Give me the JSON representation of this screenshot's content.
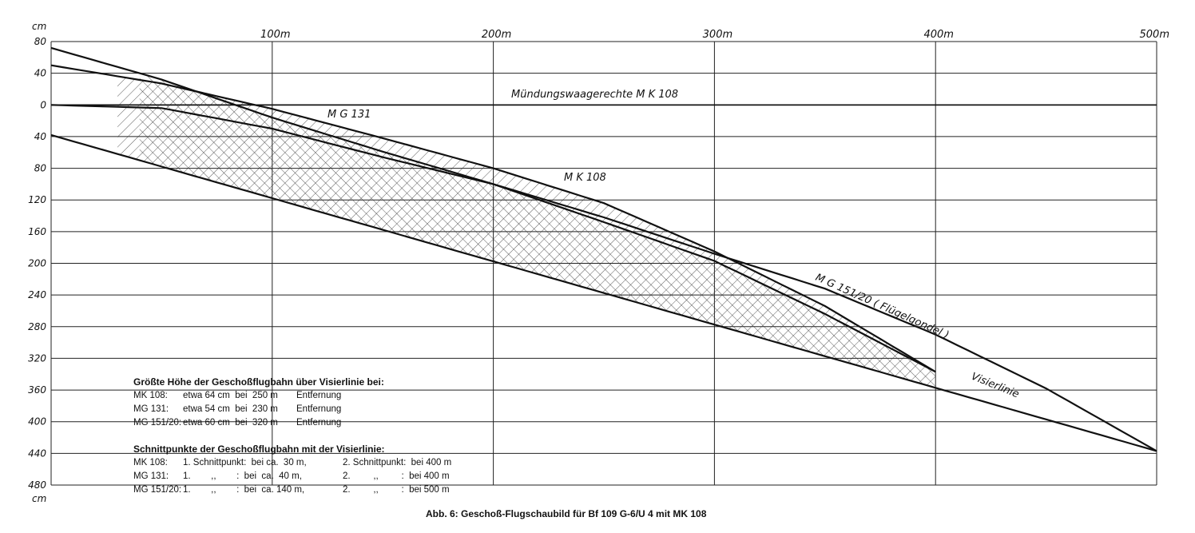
{
  "chart_data": {
    "type": "line",
    "caption": "Abb. 6: Geschoß-Flugschaubild für Bf 109 G-6/U 4 mit MK 108",
    "x_unit_labels": [
      "100m",
      "200m",
      "300m",
      "400m",
      "500m"
    ],
    "x_ticks": [
      100,
      200,
      300,
      400,
      500
    ],
    "xlim": [
      0,
      500
    ],
    "y_unit_top": "cm",
    "y_unit_bottom": "cm",
    "y_tick_labels": [
      "80",
      "40",
      "0",
      "40",
      "80",
      "120",
      "160",
      "200",
      "240",
      "280",
      "320",
      "360",
      "400",
      "440",
      "480"
    ],
    "y_ticks": [
      80,
      40,
      0,
      -40,
      -80,
      -120,
      -160,
      -200,
      -240,
      -280,
      -320,
      -360,
      -400,
      -440,
      -480
    ],
    "ylim": [
      -480,
      80
    ],
    "grid": true,
    "series": [
      {
        "name": "Visierlinie",
        "x": [
          0,
          500
        ],
        "y": [
          -38,
          -437
        ]
      },
      {
        "name": "MK 108",
        "x": [
          0,
          50,
          100,
          150,
          200,
          250,
          300,
          350,
          400
        ],
        "y": [
          50,
          27,
          -5,
          -42,
          -80,
          -124,
          -185,
          -254,
          -337
        ]
      },
      {
        "name": "MG 131",
        "x": [
          0,
          50,
          100,
          150,
          200,
          250,
          300,
          350,
          400
        ],
        "y": [
          72,
          32,
          -16,
          -59,
          -100,
          -148,
          -197,
          -264,
          -337
        ]
      },
      {
        "name": "MG 151/20",
        "x": [
          0,
          50,
          100,
          150,
          200,
          250,
          300,
          350,
          400,
          450,
          500
        ],
        "y": [
          0,
          -4,
          -30,
          -66,
          -100,
          -142,
          -188,
          -232,
          -290,
          -358,
          -437
        ]
      },
      {
        "name": "Mündungswaagerechte MK 108",
        "x": [
          0,
          500
        ],
        "y": [
          0,
          0
        ]
      }
    ],
    "annotations": [
      "Mündungswaagerechte M K 108",
      "M G 131",
      "M K 108",
      "M G 151/20 ( Flügelgondel )",
      "Visierlinie"
    ]
  },
  "info": {
    "heading1": "Größte Höhe der Geschoßflugbahn über Visierlinie bei:",
    "rows1": [
      [
        "MK 108:",
        "etwa 64 cm  bei  250 m",
        "Entfernung"
      ],
      [
        "MG 131:",
        "etwa 54 cm  bei  230 m",
        "Entfernung"
      ],
      [
        "MG 151/20:",
        "etwa 60 cm  bei  320 m",
        "Entfernung"
      ]
    ],
    "heading2": "Schnittpunkte der Geschoßflugbahn mit der Visierlinie:",
    "rows2": [
      [
        "MK 108:",
        "1. Schnittpunkt:  bei ca.  30 m,",
        "2. Schnittpunkt:  bei 400 m"
      ],
      [
        "MG 131:",
        "1.        ,,        :  bei  ca.  40 m,",
        "2.         ,,         :  bei 400 m"
      ],
      [
        "MG 151/20:",
        "1.        ,,        :  bei  ca. 140 m,",
        "2.         ,,         :  bei 500 m"
      ]
    ]
  }
}
